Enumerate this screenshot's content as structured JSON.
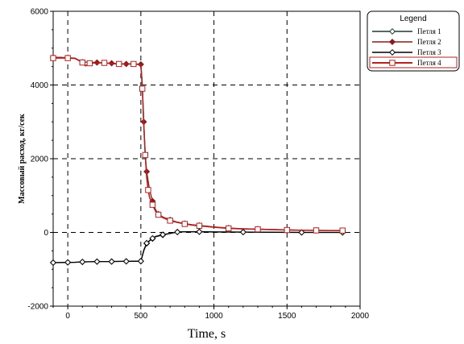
{
  "chart_data": {
    "type": "line",
    "xlabel": "Time, s",
    "ylabel": "Массовый расход, кг/сек",
    "xlim": [
      -100,
      2000
    ],
    "ylim": [
      -2000,
      6000
    ],
    "x_ticks": [
      0,
      500,
      1000,
      1500,
      2000
    ],
    "y_ticks": [
      -2000,
      0,
      2000,
      4000,
      6000
    ],
    "grid": true,
    "legend": {
      "title": "Legend",
      "position": "top-right-outside",
      "entries": [
        {
          "label": "Петля 1",
          "color": "#1f3b2a",
          "marker": "diamond-open"
        },
        {
          "label": "Петля 2",
          "color": "#8b1a1a",
          "marker": "diamond-filled"
        },
        {
          "label": "Петля 3",
          "color": "#000000",
          "marker": "diamond-open"
        },
        {
          "label": "Петля 4",
          "color": "#b22222",
          "marker": "square-open"
        }
      ]
    },
    "series": [
      {
        "name": "Петля 1",
        "color": "#1f3b2a",
        "x": [
          -100,
          -50,
          0,
          50,
          100,
          150,
          200,
          250,
          300,
          350,
          400,
          450,
          500,
          520,
          540,
          560,
          580,
          600,
          650,
          700,
          750,
          800,
          900,
          1000,
          1200,
          1400,
          1600,
          1800,
          1880
        ],
        "y": [
          -820,
          -820,
          -815,
          -810,
          -800,
          -795,
          -790,
          -790,
          -790,
          -785,
          -785,
          -780,
          -780,
          -500,
          -300,
          -230,
          -170,
          -120,
          -70,
          -30,
          10,
          20,
          20,
          15,
          10,
          5,
          0,
          0,
          0
        ]
      },
      {
        "name": "Петля 2",
        "color": "#8b1a1a",
        "x": [
          -100,
          -50,
          0,
          50,
          100,
          150,
          200,
          250,
          300,
          350,
          400,
          450,
          500,
          510,
          520,
          530,
          540,
          560,
          580,
          600,
          620,
          650,
          700,
          750,
          800,
          850,
          900,
          1000,
          1100,
          1200,
          1300,
          1400,
          1500,
          1600,
          1700,
          1800,
          1880
        ],
        "y": [
          4750,
          4750,
          4740,
          4730,
          4620,
          4620,
          4610,
          4600,
          4590,
          4580,
          4570,
          4580,
          4560,
          4000,
          3000,
          2100,
          1650,
          1150,
          850,
          620,
          500,
          420,
          340,
          280,
          240,
          210,
          190,
          150,
          120,
          100,
          90,
          80,
          70,
          60,
          55,
          50,
          50
        ]
      },
      {
        "name": "Петля 3",
        "color": "#000000",
        "x": [
          -100,
          -50,
          0,
          50,
          100,
          150,
          200,
          250,
          300,
          350,
          400,
          450,
          500,
          520,
          540,
          560,
          580,
          600,
          650,
          700,
          750,
          800,
          900,
          1000,
          1200,
          1400,
          1600,
          1800,
          1880
        ],
        "y": [
          -820,
          -815,
          -812,
          -808,
          -800,
          -795,
          -792,
          -790,
          -790,
          -786,
          -785,
          -782,
          -780,
          -480,
          -290,
          -220,
          -160,
          -110,
          -60,
          -25,
          10,
          20,
          18,
          12,
          8,
          4,
          0,
          0,
          0
        ]
      },
      {
        "name": "Петля 4",
        "color": "#b22222",
        "x": [
          -100,
          -50,
          0,
          50,
          100,
          120,
          150,
          200,
          250,
          300,
          350,
          400,
          450,
          500,
          510,
          520,
          530,
          540,
          550,
          560,
          580,
          600,
          620,
          650,
          700,
          750,
          800,
          850,
          900,
          1000,
          1100,
          1200,
          1300,
          1400,
          1500,
          1600,
          1700,
          1800,
          1880
        ],
        "y": [
          4730,
          4730,
          4730,
          4720,
          4610,
          4520,
          4590,
          4600,
          4600,
          4580,
          4570,
          4570,
          4570,
          4550,
          3900,
          2900,
          2100,
          1500,
          1150,
          950,
          750,
          580,
          480,
          400,
          320,
          270,
          230,
          200,
          180,
          140,
          110,
          95,
          85,
          75,
          65,
          60,
          55,
          50,
          50
        ]
      }
    ]
  }
}
